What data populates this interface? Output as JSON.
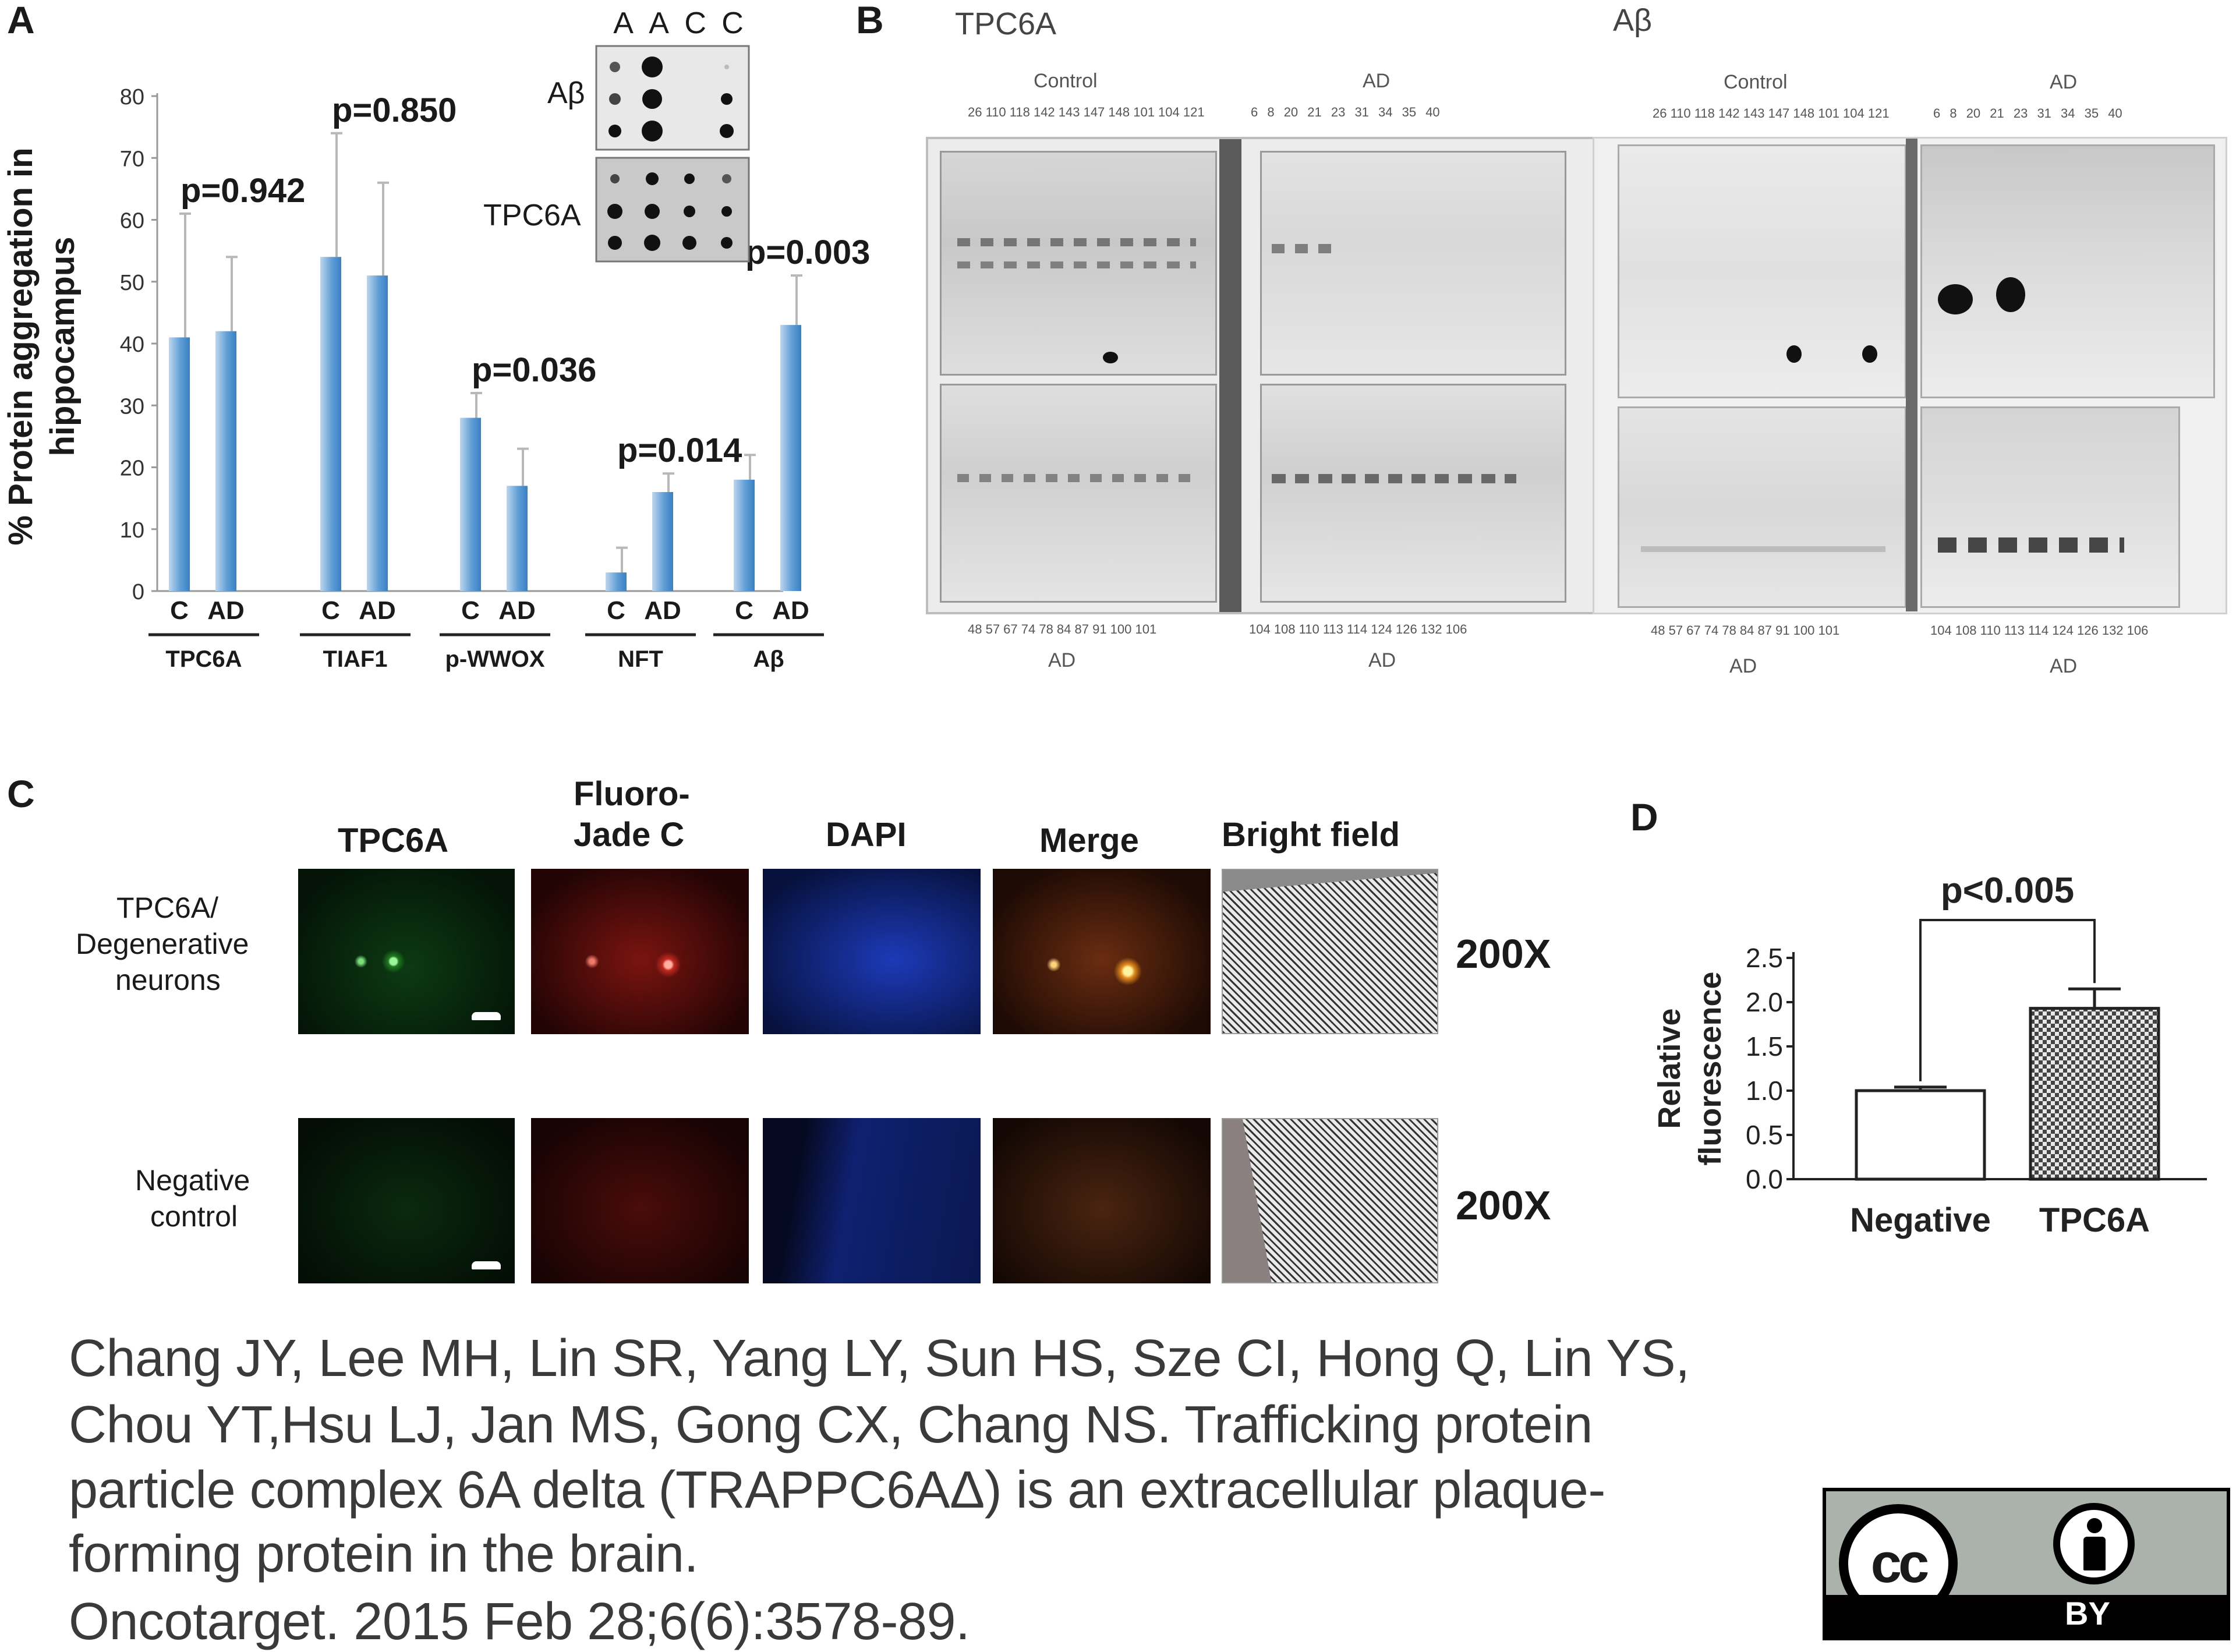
{
  "panels": {
    "a": "A",
    "b": "B",
    "c": "C",
    "d": "D"
  },
  "chart_a": {
    "type": "bar",
    "ylabel_lines": [
      "% Protein aggregation in",
      "hippocampus"
    ],
    "ylim": [
      0,
      80
    ],
    "yticks": [
      0,
      10,
      20,
      30,
      40,
      50,
      60,
      70,
      80
    ],
    "groups": [
      {
        "name": "TPC6A",
        "labels": [
          "C",
          "AD"
        ],
        "values": [
          41,
          42
        ],
        "err": [
          61,
          54
        ],
        "p": "p=0.942"
      },
      {
        "name": "TIAF1",
        "labels": [
          "C",
          "AD"
        ],
        "values": [
          54,
          51
        ],
        "err": [
          74,
          66
        ],
        "p": "p=0.850"
      },
      {
        "name": "p-WWOX",
        "labels": [
          "C",
          "AD"
        ],
        "values": [
          28,
          17
        ],
        "err": [
          32,
          23
        ],
        "p": "p=0.036"
      },
      {
        "name": "NFT",
        "labels": [
          "C",
          "AD"
        ],
        "values": [
          3,
          16
        ],
        "err": [
          7,
          19
        ],
        "p": "p=0.014"
      },
      {
        "name": "Aβ",
        "labels": [
          "C",
          "AD"
        ],
        "values": [
          18,
          43
        ],
        "err": [
          22,
          51
        ],
        "p": "p=0.003"
      }
    ]
  },
  "dot_blot": {
    "columns": [
      "A",
      "A",
      "C",
      "C"
    ],
    "row_labels": [
      "Aβ",
      "TPC6A"
    ]
  },
  "western": {
    "left_title": "TPC6A",
    "right_title": "Aβ",
    "top_group_control": "Control",
    "top_group_ad": "AD",
    "bottom_group_ad": "AD",
    "top_control_lanes": "26 110 118 142 143 147 148 101 104 121",
    "top_ad_lanes": "6 8 20 21 23 31 34 35 40",
    "bottom_left_lanes": "48 57 67 74 78 84 87 91 100 101",
    "bottom_right_lanes": "104 108 110 113 114 124 126 132 106"
  },
  "micro": {
    "columns": [
      "TPC6A",
      "Fluoro-Jade C",
      "DAPI",
      "Merge",
      "Bright field"
    ],
    "column_lines": {
      "fluoro_1": "Fluoro-",
      "fluoro_2": "Jade C"
    },
    "row1_lines": [
      "TPC6A/",
      "Degenerative",
      "neurons"
    ],
    "row2_lines": [
      "Negative",
      "control"
    ],
    "magnification": "200X"
  },
  "chart_d": {
    "type": "bar",
    "ylabel_lines": [
      "Relative",
      "fluorescence"
    ],
    "ylim": [
      0,
      2.5
    ],
    "yticks": [
      "0.0",
      "0.5",
      "1.0",
      "1.5",
      "2.0",
      "2.5"
    ],
    "categories": [
      "Negative",
      "TPC6A"
    ],
    "values": [
      1.0,
      1.93
    ],
    "err": [
      1.04,
      2.15
    ],
    "p": "p<0.005"
  },
  "citation": {
    "lines": [
      "Chang JY, Lee MH, Lin SR, Yang LY, Sun HS, Sze CI, Hong Q, Lin YS,",
      "Chou YT,Hsu LJ, Jan MS, Gong CX, Chang NS. Trafficking protein",
      "particle complex 6A delta (TRAPPC6AΔ) is an extracellular plaque-",
      "forming protein in the brain.",
      "Oncotarget. 2015 Feb 28;6(6):3578-89."
    ]
  },
  "license": {
    "cc": "cc",
    "by": "BY"
  }
}
